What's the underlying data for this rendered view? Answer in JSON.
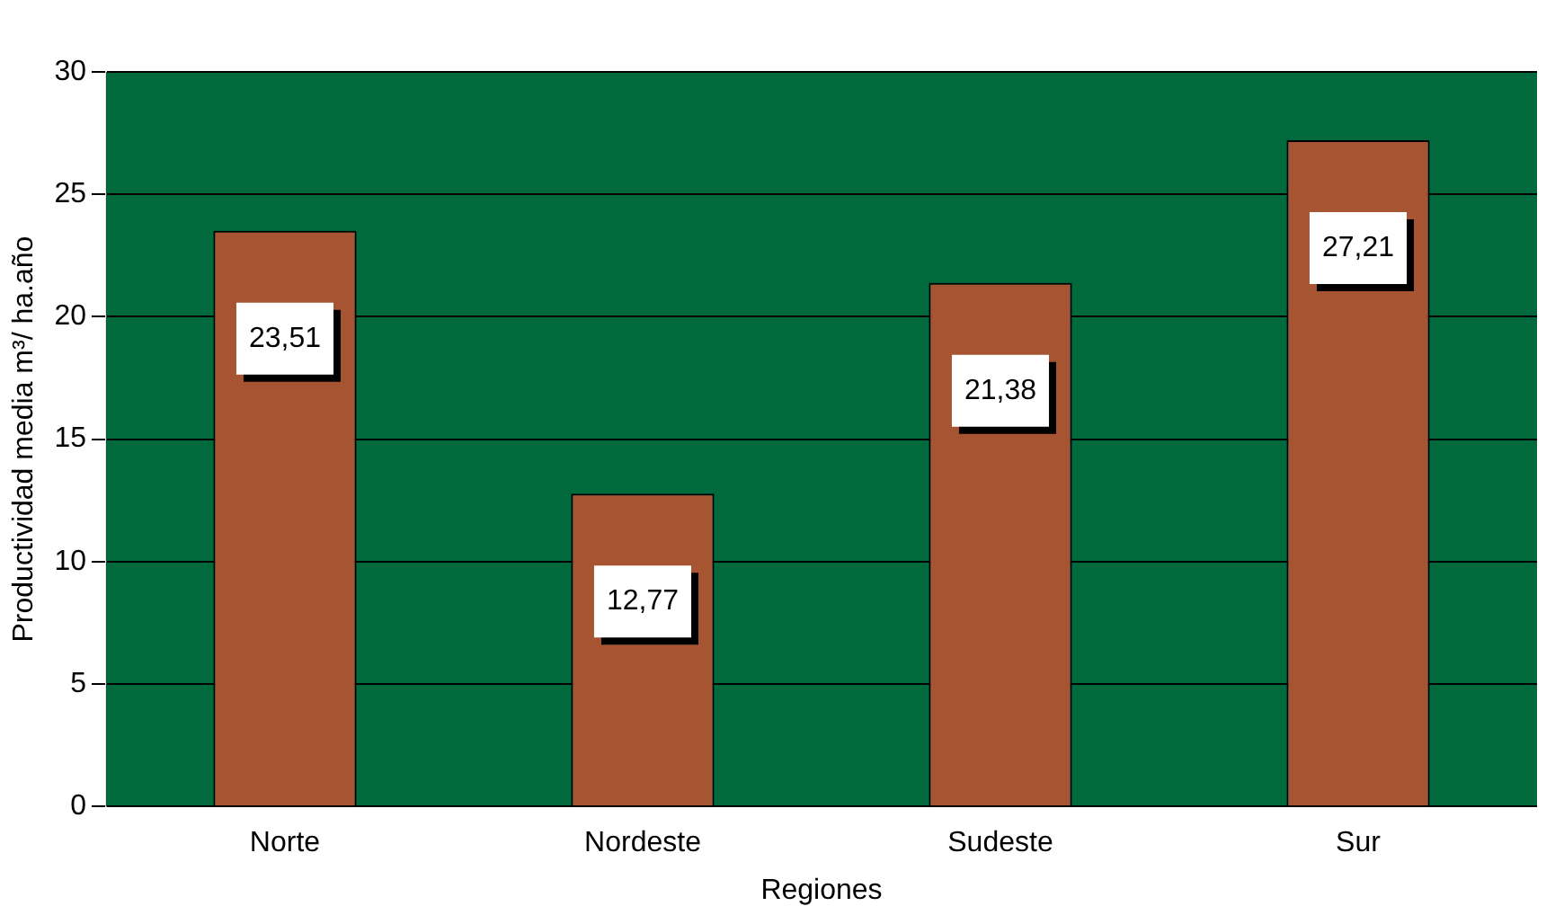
{
  "chart_data": {
    "type": "bar",
    "xlabel": "Regiones",
    "ylabel": "Productividad media m³/ ha.año",
    "categories": [
      "Norte",
      "Nordeste",
      "Sudeste",
      "Sur"
    ],
    "values": [
      23.51,
      12.77,
      21.38,
      27.21
    ],
    "color": "#a65432",
    "ylim": [
      0,
      30
    ],
    "yticks": [
      0,
      5,
      10,
      15,
      20,
      25,
      30
    ],
    "grid": "y",
    "value_labels": [
      "23,51",
      "12,77",
      "21,38",
      "27,21"
    ]
  }
}
